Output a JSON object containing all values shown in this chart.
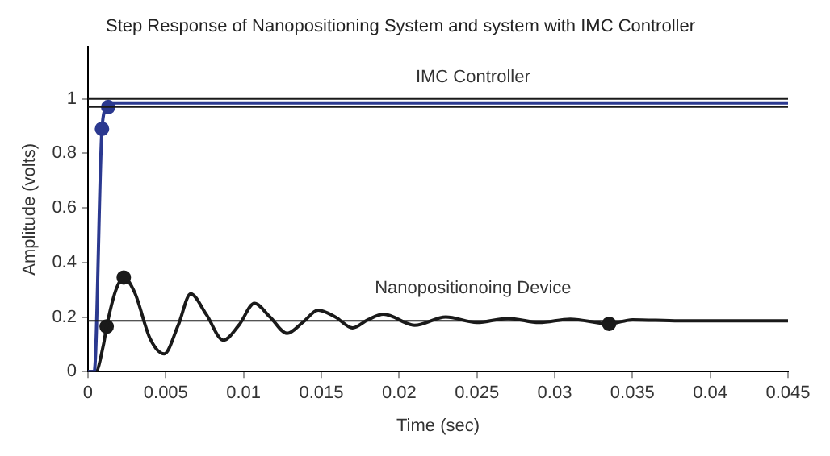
{
  "chart_data": {
    "type": "line",
    "title": "Step Response of Nanopositioning System and system with IMC Controller",
    "xlabel": "Time (sec)",
    "ylabel": "Amplitude (volts)",
    "xlim": [
      0,
      0.045
    ],
    "xticks": [
      0,
      0.005,
      0.01,
      0.015,
      0.02,
      0.025,
      0.03,
      0.035,
      0.04,
      0.045
    ],
    "ylim": [
      0,
      1.19
    ],
    "yticks": [
      0,
      0.2,
      0.4,
      0.6,
      0.8,
      1
    ],
    "grid": false,
    "legend": false,
    "marker": "none",
    "line_style": "solid",
    "series": [
      {
        "color": "#2b3990",
        "x": [
          0,
          0.0004,
          0.0009,
          0.0012,
          0.0015,
          0.045
        ],
        "values": [
          0,
          0,
          0.89,
          0.97,
          0.985,
          0.985
        ]
      },
      {
        "color": "#1a1a1a",
        "x": [
          0,
          0.0005,
          0.001,
          0.0012,
          0.0018,
          0.0023,
          0.003,
          0.004,
          0.0049,
          0.0058,
          0.0066,
          0.0076,
          0.0087,
          0.0097,
          0.0107,
          0.0117,
          0.0128,
          0.0138,
          0.0148,
          0.0159,
          0.017,
          0.018,
          0.019,
          0.021,
          0.023,
          0.025,
          0.027,
          0.029,
          0.031,
          0.0335,
          0.035,
          0.038,
          0.045
        ],
        "values": [
          0,
          0,
          0.1,
          0.165,
          0.3,
          0.345,
          0.29,
          0.12,
          0.065,
          0.17,
          0.285,
          0.21,
          0.115,
          0.17,
          0.25,
          0.2,
          0.14,
          0.18,
          0.225,
          0.2,
          0.16,
          0.19,
          0.21,
          0.17,
          0.2,
          0.18,
          0.195,
          0.18,
          0.192,
          0.175,
          0.19,
          0.186,
          0.186
        ]
      },
      {
        "type": "scatter",
        "color": "#2b3990",
        "marker": "circle",
        "x": [
          0.0009,
          0.0013
        ],
        "values": [
          0.89,
          0.97
        ]
      },
      {
        "type": "scatter",
        "color": "#1a1a1a",
        "marker": "circle",
        "x": [
          0.0012,
          0.0023,
          0.0335
        ],
        "values": [
          0.165,
          0.345,
          0.175
        ]
      }
    ],
    "ref_lines": [
      {
        "axis": "y",
        "value": 1,
        "color": "#1a1a1a"
      },
      {
        "axis": "y",
        "value": 0.97,
        "color": "#1a1a1a"
      },
      {
        "axis": "y",
        "value": 0.186,
        "color": "#1a1a1a"
      }
    ],
    "annotations": [
      "IMC Controller",
      "Nanopositionoing Device"
    ]
  }
}
